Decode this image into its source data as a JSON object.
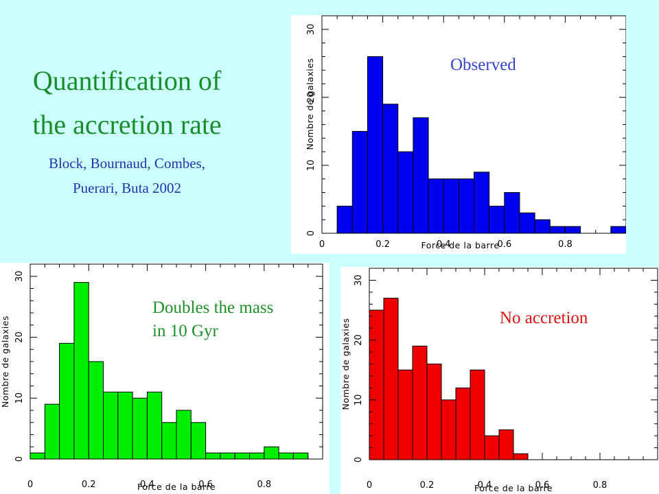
{
  "slide": {
    "title_line1": "Quantification of",
    "title_line2": "the accretion rate",
    "authors_line1": "Block, Bournaud, Combes,",
    "authors_line2": "Puerari, Buta 2002"
  },
  "colors": {
    "background": "#ccffff",
    "title": "#1a8c2a",
    "authors": "#2233aa",
    "observed": "#0000ee",
    "green": "#00ee00",
    "red": "#ee0000"
  },
  "chart_data": [
    {
      "id": "observed",
      "type": "bar",
      "annotation": "Observed",
      "annotation_color": "#3344cc",
      "bar_color": "#0000ee",
      "xlabel": "Force de la barre",
      "ylabel": "Nombre de galaxies",
      "xlim": [
        0,
        1
      ],
      "ylim": [
        0,
        32
      ],
      "x_ticks": [
        "0",
        "0.2",
        "0.4",
        "0.6",
        "0.8"
      ],
      "x_tick_values": [
        0,
        0.2,
        0.4,
        0.6,
        0.8
      ],
      "y_ticks": [
        "0",
        "10",
        "20",
        "30"
      ],
      "y_tick_values": [
        0,
        10,
        20,
        30
      ],
      "bin_start": 0,
      "bin_width": 0.05,
      "values": [
        0,
        4,
        15,
        26,
        19,
        12,
        17,
        8,
        8,
        8,
        9,
        4,
        6,
        3,
        2,
        1,
        1,
        0,
        0,
        1
      ]
    },
    {
      "id": "green",
      "type": "bar",
      "annotation": [
        "Doubles the mass",
        "in 10 Gyr"
      ],
      "annotation_color": "#1f8f2a",
      "bar_color": "#00ee00",
      "xlabel": "Force de la barre",
      "ylabel": "Nombre de galaxies",
      "xlim": [
        0,
        1
      ],
      "ylim": [
        0,
        32
      ],
      "x_ticks": [
        "0",
        "0.2",
        "0.4",
        "0.6",
        "0.8"
      ],
      "x_tick_values": [
        0,
        0.2,
        0.4,
        0.6,
        0.8
      ],
      "y_ticks": [
        "0",
        "10",
        "20",
        "30"
      ],
      "y_tick_values": [
        0,
        10,
        20,
        30
      ],
      "bin_start": 0,
      "bin_width": 0.05,
      "values": [
        1,
        9,
        19,
        29,
        16,
        11,
        11,
        10,
        11,
        6,
        8,
        6,
        1,
        1,
        1,
        1,
        2,
        1,
        1
      ]
    },
    {
      "id": "red",
      "type": "bar",
      "annotation": "No accretion",
      "annotation_color": "#dd1111",
      "bar_color": "#ee0000",
      "xlabel": "Force de la barre",
      "ylabel": "Nombre de galaxies",
      "xlim": [
        0,
        1
      ],
      "ylim": [
        0,
        32
      ],
      "x_ticks": [
        "0",
        "0.2",
        "0.4",
        "0.6",
        "0.8"
      ],
      "x_tick_values": [
        0,
        0.2,
        0.4,
        0.6,
        0.8
      ],
      "y_ticks": [
        "0",
        "10",
        "20",
        "30"
      ],
      "y_tick_values": [
        0,
        10,
        20,
        30
      ],
      "bin_start": 0,
      "bin_width": 0.05,
      "values": [
        25,
        27,
        15,
        19,
        16,
        10,
        12,
        15,
        4,
        5,
        1
      ]
    }
  ]
}
